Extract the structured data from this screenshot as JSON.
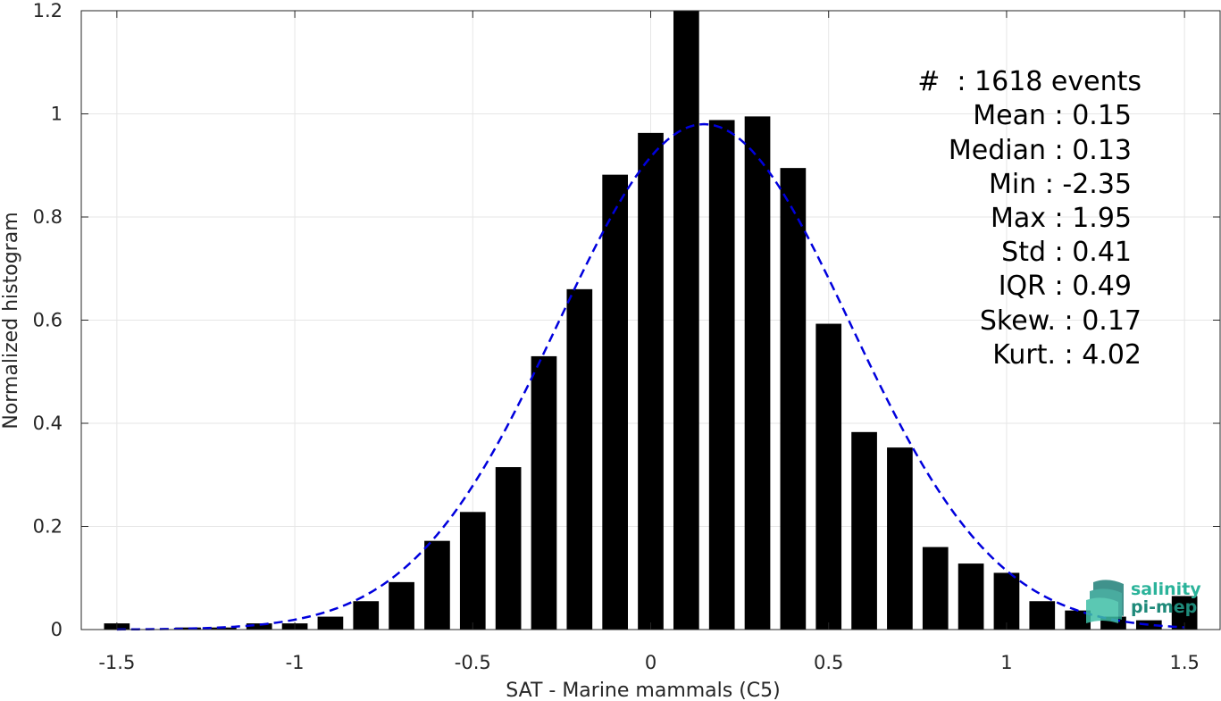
{
  "chart_data": {
    "type": "bar",
    "title": "",
    "xlabel": "SAT - Marine mammals (C5)",
    "ylabel": "Normalized histogram",
    "xlim": [
      -1.6,
      1.6
    ],
    "ylim": [
      0,
      1.2
    ],
    "xticks": [
      "-1.5",
      "-1",
      "-0.5",
      "0",
      "0.5",
      "1",
      "1.5"
    ],
    "xtick_values": [
      -1.5,
      -1,
      -0.5,
      0,
      0.5,
      1,
      1.5
    ],
    "yticks": [
      "0",
      "0.2",
      "0.4",
      "0.6",
      "0.8",
      "1",
      "1.2"
    ],
    "ytick_values": [
      0,
      0.2,
      0.4,
      0.6,
      0.8,
      1,
      1.2
    ],
    "grid": true,
    "bar_color": "#000000",
    "bars": [
      {
        "x": -1.5,
        "value": 0.012
      },
      {
        "x": -1.4,
        "value": 0.0
      },
      {
        "x": -1.3,
        "value": 0.004
      },
      {
        "x": -1.2,
        "value": 0.004
      },
      {
        "x": -1.1,
        "value": 0.012
      },
      {
        "x": -1.0,
        "value": 0.012
      },
      {
        "x": -0.9,
        "value": 0.025
      },
      {
        "x": -0.8,
        "value": 0.055
      },
      {
        "x": -0.7,
        "value": 0.092
      },
      {
        "x": -0.6,
        "value": 0.172
      },
      {
        "x": -0.5,
        "value": 0.228
      },
      {
        "x": -0.4,
        "value": 0.315
      },
      {
        "x": -0.3,
        "value": 0.53
      },
      {
        "x": -0.2,
        "value": 0.66
      },
      {
        "x": -0.1,
        "value": 0.882
      },
      {
        "x": 0.0,
        "value": 0.963
      },
      {
        "x": 0.1,
        "value": 1.2
      },
      {
        "x": 0.2,
        "value": 0.988
      },
      {
        "x": 0.3,
        "value": 0.995
      },
      {
        "x": 0.4,
        "value": 0.895
      },
      {
        "x": 0.5,
        "value": 0.593
      },
      {
        "x": 0.6,
        "value": 0.383
      },
      {
        "x": 0.7,
        "value": 0.353
      },
      {
        "x": 0.8,
        "value": 0.16
      },
      {
        "x": 0.9,
        "value": 0.128
      },
      {
        "x": 1.0,
        "value": 0.11
      },
      {
        "x": 1.1,
        "value": 0.055
      },
      {
        "x": 1.2,
        "value": 0.037
      },
      {
        "x": 1.3,
        "value": 0.025
      },
      {
        "x": 1.4,
        "value": 0.018
      },
      {
        "x": 1.5,
        "value": 0.065
      }
    ],
    "fit_curve": {
      "style": "dashed",
      "color": "#0000dd",
      "shape": "gaussian",
      "mu": 0.15,
      "sigma": 0.41,
      "peak": 0.98,
      "x_range": [
        -1.5,
        1.5
      ]
    }
  },
  "stats": {
    "line1": "#  : 1618 events",
    "line2": "Mean : 0.15",
    "line3": "Median : 0.13",
    "line4": "Min : -2.35",
    "line5": "Max : 1.95",
    "line6": "Std : 0.41",
    "line7": "IQR : 0.49",
    "line8": "Skew. : 0.17",
    "line9": "Kurt. : 4.02"
  },
  "logo": {
    "line1": "salinity",
    "line2": "pi-mep"
  }
}
